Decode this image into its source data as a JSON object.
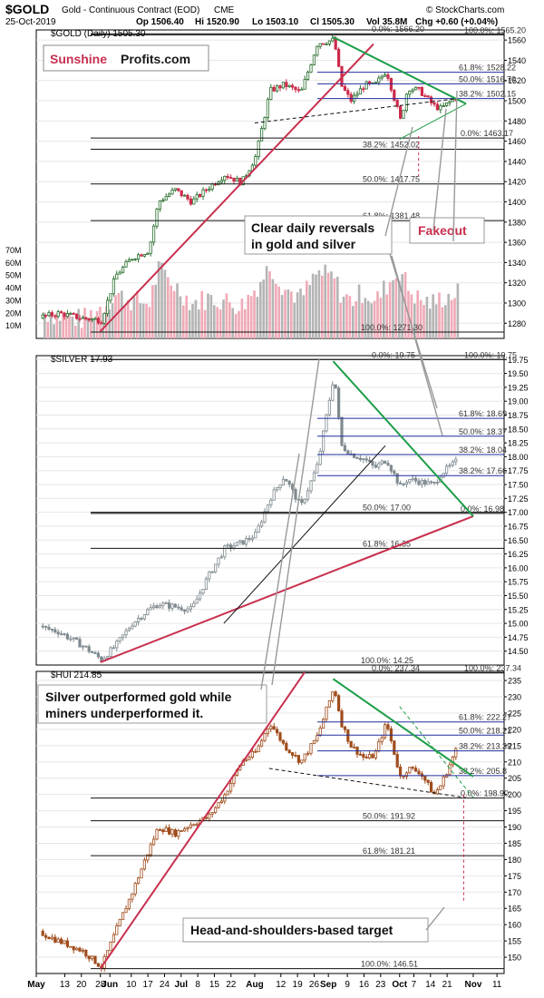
{
  "header": {
    "symbol": "$GOLD",
    "desc": "Gold - Continuous Contract (EOD)",
    "exchange": "CME",
    "date": "25-Oct-2019",
    "op": "Op 1506.40",
    "hi": "Hi 1520.90",
    "lo": "Lo 1503.10",
    "cl": "Cl 1505.30",
    "vol": "Vol 35.8M",
    "chg": "Chg +0.60 (+0.04%)",
    "watermark": "© StockCharts.com"
  },
  "x_axis": {
    "labels": [
      "May",
      "13",
      "20",
      "28",
      "Jun",
      "10",
      "17",
      "24",
      "Jul",
      "8",
      "15",
      "22",
      "Aug",
      "12",
      "19",
      "26",
      "Sep",
      "9",
      "16",
      "23",
      "Oct",
      "7",
      "14",
      "21",
      "Nov",
      "11"
    ],
    "bold": [
      "May",
      "Jun",
      "Jul",
      "Aug",
      "Sep",
      "Oct",
      "Nov"
    ]
  },
  "colors": {
    "up": "#2a6e2e",
    "down": "#cc2b4a",
    "green": "#1d9e48",
    "red": "#c8304f",
    "blue": "#1f2ea0",
    "vol": "#f0aab6",
    "vol_gray": "#b4b4b4",
    "silver": "#7f8a90",
    "hui": "#a04d1c"
  },
  "chart_data": [
    {
      "type": "line",
      "panel": "gold",
      "legend": "$GOLD (Daily) 1505.30",
      "brand": {
        "word1": "Sunshine",
        "word2": "Profits.com"
      },
      "ylim": [
        1265,
        1570
      ],
      "yticks": [
        1280,
        1300,
        1320,
        1340,
        1360,
        1380,
        1400,
        1420,
        1440,
        1460,
        1480,
        1500,
        1520,
        1540,
        1560
      ],
      "x": [
        "2019-05-01",
        "2019-05-10",
        "2019-05-20",
        "2019-05-28",
        "2019-06-03",
        "2019-06-10",
        "2019-06-17",
        "2019-06-21",
        "2019-06-28",
        "2019-07-05",
        "2019-07-12",
        "2019-07-19",
        "2019-07-26",
        "2019-08-01",
        "2019-08-07",
        "2019-08-13",
        "2019-08-20",
        "2019-08-27",
        "2019-09-03",
        "2019-09-06",
        "2019-09-10",
        "2019-09-16",
        "2019-09-20",
        "2019-09-25",
        "2019-10-01",
        "2019-10-04",
        "2019-10-09",
        "2019-10-15",
        "2019-10-18",
        "2019-10-25"
      ],
      "series": [
        {
          "values": [
            1285,
            1290,
            1285,
            1283,
            1327,
            1345,
            1352,
            1400,
            1412,
            1400,
            1414,
            1427,
            1419,
            1445,
            1510,
            1516,
            1508,
            1557,
            1560,
            1515,
            1500,
            1516,
            1515,
            1530,
            1480,
            1513,
            1510,
            1495,
            1492,
            1505
          ]
        }
      ],
      "volume": {
        "ylim": [
          0,
          80
        ],
        "yticks": [
          10,
          20,
          30,
          40,
          50,
          60,
          70
        ],
        "ytick_labels": [
          "10M",
          "20M",
          "30M",
          "40M",
          "50M",
          "60M",
          "70M"
        ],
        "values": [
          22,
          18,
          15,
          25,
          35,
          30,
          28,
          55,
          42,
          28,
          32,
          30,
          26,
          40,
          58,
          40,
          32,
          52,
          48,
          35,
          30,
          38,
          28,
          42,
          55,
          40,
          30,
          28,
          32,
          36
        ]
      },
      "fibs": [
        {
          "label": "0.0%: 1566.20",
          "value": 1566.2
        },
        {
          "label": "100.0%: 1565.20",
          "value": 1565.2
        },
        {
          "label": "61.8%: 1528.22",
          "value": 1528.22
        },
        {
          "label": "50.0%: 1516.70",
          "value": 1516.7
        },
        {
          "label": "38.2%: 1502.15",
          "value": 1502.15
        },
        {
          "label": "0.0%: 1463.17",
          "value": 1463.17
        },
        {
          "label": "38.2%: 1452.02",
          "value": 1452.02
        },
        {
          "label": "50.0%: 1417.75",
          "value": 1417.75
        },
        {
          "label": "61.8%: 1381.48",
          "value": 1381.48
        },
        {
          "label": "100.0%: 1271.30",
          "value": 1271.3
        }
      ],
      "annotations": [
        {
          "label": "Clear daily reversals\nin gold and silver"
        },
        {
          "label": "Fakeout"
        }
      ]
    },
    {
      "type": "line",
      "panel": "silver",
      "legend": "$SILVER 17.93",
      "ylim": [
        14.25,
        19.82
      ],
      "yticks": [
        14.5,
        14.75,
        15.0,
        15.25,
        15.5,
        15.75,
        16.0,
        16.25,
        16.5,
        16.75,
        17.0,
        17.25,
        17.5,
        17.75,
        18.0,
        18.25,
        18.5,
        18.75,
        19.0,
        19.25,
        19.5,
        19.75
      ],
      "ytick_labels": [
        "14.50",
        "14.75",
        "15.00",
        "15.25",
        "15.50",
        "15.75",
        "16.00",
        "16.25",
        "16.50",
        "16.75",
        "17.00",
        "17.25",
        "17.50",
        "17.75",
        "18.00",
        "18.25",
        "18.50",
        "18.75",
        "19.00",
        "19.25",
        "19.50",
        "19.75"
      ],
      "x": [
        "2019-05-01",
        "2019-05-10",
        "2019-05-20",
        "2019-05-28",
        "2019-06-03",
        "2019-06-10",
        "2019-06-17",
        "2019-06-21",
        "2019-06-28",
        "2019-07-05",
        "2019-07-12",
        "2019-07-19",
        "2019-07-26",
        "2019-08-01",
        "2019-08-07",
        "2019-08-13",
        "2019-08-20",
        "2019-08-27",
        "2019-09-03",
        "2019-09-06",
        "2019-09-10",
        "2019-09-16",
        "2019-09-20",
        "2019-09-25",
        "2019-10-01",
        "2019-10-04",
        "2019-10-09",
        "2019-10-15",
        "2019-10-18",
        "2019-10-25"
      ],
      "series": [
        {
          "values": [
            14.95,
            14.85,
            14.6,
            14.35,
            14.6,
            15.0,
            15.25,
            15.35,
            15.3,
            15.25,
            15.85,
            16.35,
            16.45,
            16.6,
            17.25,
            17.65,
            17.1,
            17.85,
            19.5,
            18.2,
            18.05,
            17.95,
            17.8,
            17.95,
            17.45,
            17.6,
            17.55,
            17.5,
            17.7,
            17.93
          ]
        }
      ],
      "fibs": [
        {
          "label": "0.0%: 19.75",
          "value": 19.75
        },
        {
          "label": "100.0%: 19.75",
          "value": 19.75
        },
        {
          "label": "61.8%: 18.69",
          "value": 18.69
        },
        {
          "label": "50.0%: 18.37",
          "value": 18.37
        },
        {
          "label": "38.2%: 18.04",
          "value": 18.04
        },
        {
          "label": "38.2%: 17.66",
          "value": 17.66
        },
        {
          "label": "50.0%: 17.00",
          "value": 17.0
        },
        {
          "label": "0.0%: 16.98",
          "value": 16.98
        },
        {
          "label": "61.8%: 16.35",
          "value": 16.35
        },
        {
          "label": "100.0%: 14.25",
          "value": 14.25
        }
      ]
    },
    {
      "type": "line",
      "panel": "hui",
      "legend": "$HUI 214.85",
      "ylim": [
        145,
        237.8
      ],
      "yticks": [
        150,
        155,
        160,
        165,
        170,
        175,
        180,
        185,
        190,
        195,
        200,
        205,
        210,
        215,
        220,
        225,
        230,
        235
      ],
      "x": [
        "2019-05-01",
        "2019-05-10",
        "2019-05-20",
        "2019-05-28",
        "2019-06-03",
        "2019-06-10",
        "2019-06-17",
        "2019-06-21",
        "2019-06-28",
        "2019-07-05",
        "2019-07-12",
        "2019-07-19",
        "2019-07-26",
        "2019-08-01",
        "2019-08-07",
        "2019-08-13",
        "2019-08-20",
        "2019-08-27",
        "2019-09-03",
        "2019-09-06",
        "2019-09-10",
        "2019-09-16",
        "2019-09-20",
        "2019-09-25",
        "2019-10-01",
        "2019-10-04",
        "2019-10-09",
        "2019-10-15",
        "2019-10-18",
        "2019-10-25"
      ],
      "series": [
        {
          "values": [
            158,
            155,
            152,
            147,
            158,
            170,
            183,
            190,
            188,
            191,
            193,
            200,
            210,
            213,
            222,
            215,
            210,
            218,
            233,
            222,
            215,
            211,
            212,
            222,
            205,
            208,
            207,
            200,
            203,
            214.85
          ]
        }
      ],
      "fibs": [
        {
          "label": "0.0%: 237.34",
          "value": 237.34
        },
        {
          "label": "100.0%: 237.34",
          "value": 237.34
        },
        {
          "label": "61.8%: 222.27",
          "value": 222.27
        },
        {
          "label": "50.0%: 218.21",
          "value": 218.21
        },
        {
          "label": "38.2%: 213.39",
          "value": 213.39
        },
        {
          "label": "38.2%: 205.8",
          "value": 205.8
        },
        {
          "label": "0.0%: 198.90",
          "value": 198.9
        },
        {
          "label": "50.0%: 191.92",
          "value": 191.92
        },
        {
          "label": "61.8%: 181.21",
          "value": 181.21
        },
        {
          "label": "100.0%: 146.51",
          "value": 146.51
        }
      ],
      "annotations": [
        {
          "label": "Silver outperformed gold while\nminers underperformed it."
        },
        {
          "label": "Head-and-shoulders-based target"
        }
      ]
    }
  ]
}
